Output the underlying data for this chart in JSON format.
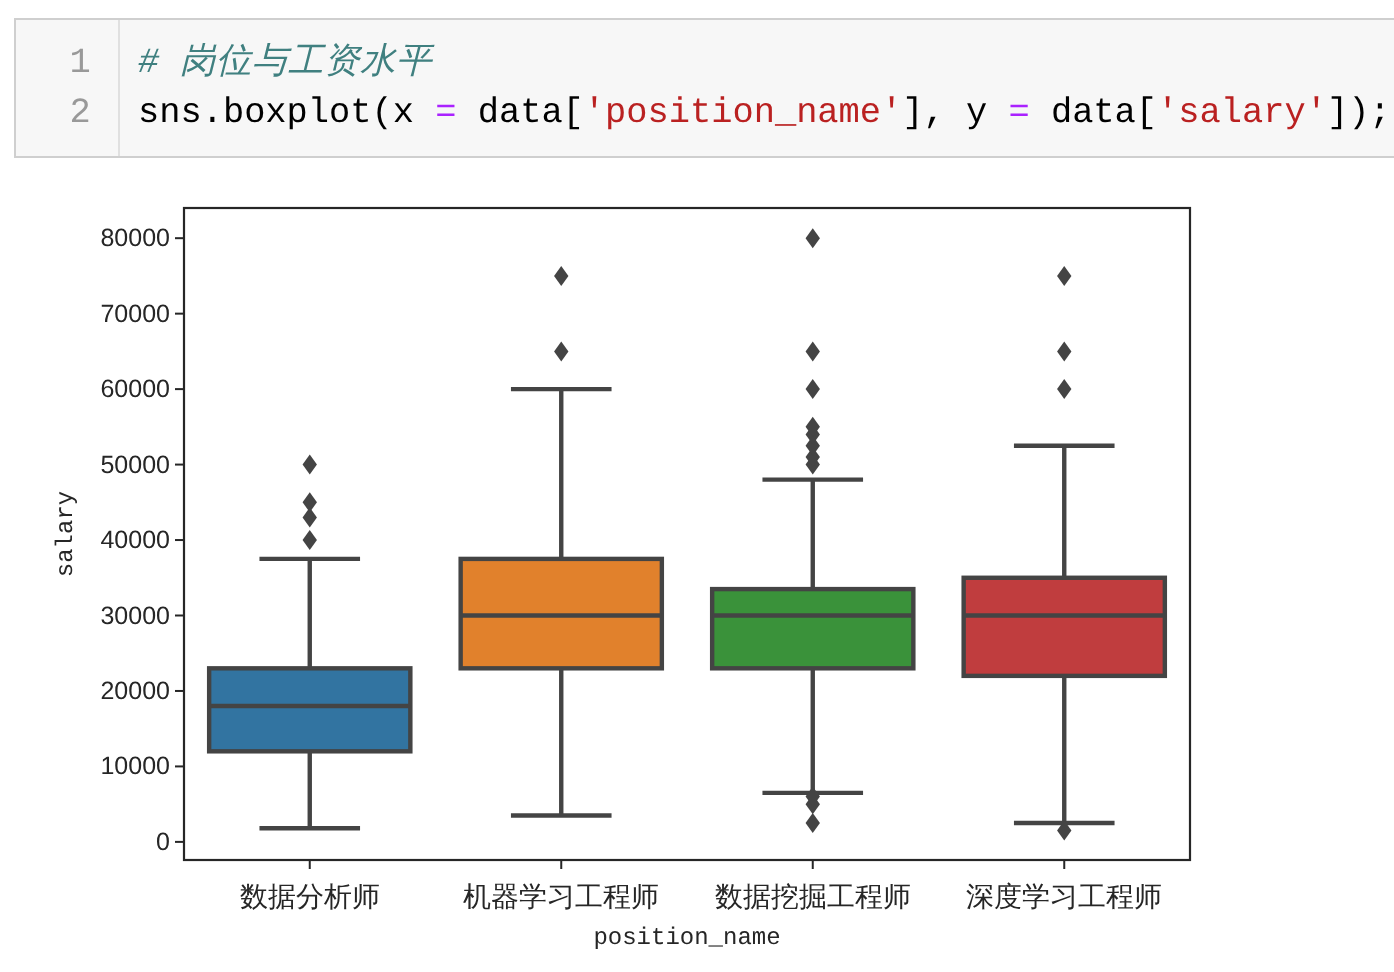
{
  "chart_data": {
    "type": "box",
    "categories": [
      "数据分析师",
      "机器学习工程师",
      "数据挖掘工程师",
      "深度学习工程师"
    ],
    "boxes": [
      {
        "low": 1800,
        "q1": 12000,
        "median": 18000,
        "q3": 23000,
        "high": 37500,
        "outliers": [
          40000,
          43000,
          45000,
          50000
        ]
      },
      {
        "low": 3500,
        "q1": 23000,
        "median": 30000,
        "q3": 37500,
        "high": 60000,
        "outliers": [
          65000,
          75000
        ]
      },
      {
        "low": 6500,
        "q1": 23000,
        "median": 30000,
        "q3": 33500,
        "high": 48000,
        "outliers": [
          2500,
          5000,
          6000,
          50000,
          51000,
          52500,
          54000,
          55000,
          60000,
          65000,
          80000
        ]
      },
      {
        "low": 2500,
        "q1": 22000,
        "median": 30000,
        "q3": 35000,
        "high": 52500,
        "outliers": [
          1500,
          60000,
          65000,
          75000
        ]
      }
    ],
    "colors": [
      "#3274a1",
      "#e1812c",
      "#3a923a",
      "#c03d3e"
    ],
    "marker": "diamond",
    "xlabel": "position_name",
    "ylabel": "salary",
    "ylim": [
      -2400,
      84000
    ],
    "yticks": [
      0,
      10000,
      20000,
      30000,
      40000,
      50000,
      60000,
      70000,
      80000
    ],
    "annotations": [
      "1",
      "2",
      "# 岗位与工资水平",
      "sns.boxplot(x = data['position_name'], y = data['salary']);"
    ]
  }
}
